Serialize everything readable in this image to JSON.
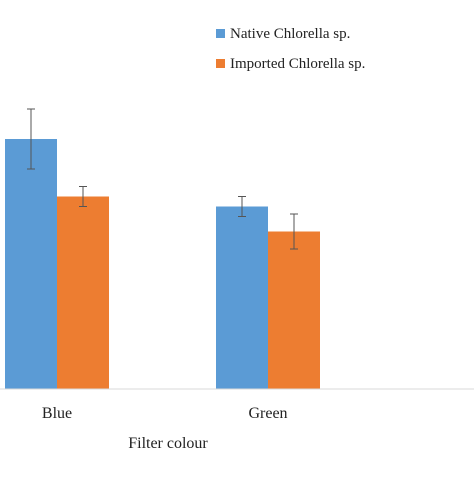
{
  "chart_data": {
    "type": "bar",
    "categories": [
      "Blue",
      "Green"
    ],
    "series": [
      {
        "name": "Native Chlorella sp.",
        "values": [
          100,
          73
        ],
        "errors": [
          12,
          4
        ],
        "color": "#5b9bd5"
      },
      {
        "name": "Imported Chlorella sp.",
        "values": [
          77,
          63
        ],
        "errors": [
          4,
          7
        ],
        "color": "#ed7d31"
      }
    ],
    "xlabel": "Filter colour",
    "ylabel": "",
    "ylim": [
      0,
      115
    ],
    "legend_position": "top-right",
    "grid": false
  }
}
